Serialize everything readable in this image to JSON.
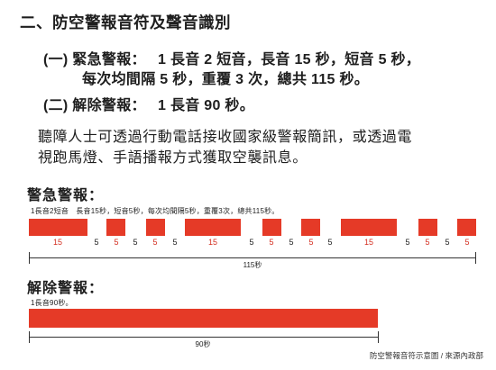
{
  "section_title": "二、防空警報音符及聲音識別",
  "items": [
    {
      "label": "(一) 緊急警報：",
      "text_line1": "1 長音 2 短音，長音 15 秒，短音 5 秒，",
      "text_line2": "每次均間隔 5 秒，重覆 3 次，總共 115 秒。"
    },
    {
      "label": "(二) 解除警報：",
      "text_line1": "1 長音 90 秒。"
    }
  ],
  "notice_line1": "聽障人士可透過行動電話接收國家級警報簡訊，或透過電",
  "notice_line2": "視跑馬燈、手語播報方式獲取空襲訊息。",
  "diagrams": [
    {
      "title": "警急警報：",
      "description": "1長音2短音　長音15秒，短音5秒，每次均間隔5秒，重覆3次，總共115秒。",
      "segment_labels": [
        {
          "text": "15",
          "color": "red"
        },
        {
          "text": "5",
          "color": "black"
        },
        {
          "text": "5",
          "color": "red"
        },
        {
          "text": "5",
          "color": "black"
        },
        {
          "text": "5",
          "color": "red"
        },
        {
          "text": "5",
          "color": "black"
        },
        {
          "text": "15",
          "color": "red"
        },
        {
          "text": "5",
          "color": "black"
        },
        {
          "text": "5",
          "color": "red"
        },
        {
          "text": "5",
          "color": "black"
        },
        {
          "text": "5",
          "color": "red"
        },
        {
          "text": "5",
          "color": "black"
        },
        {
          "text": "15",
          "color": "red"
        },
        {
          "text": "5",
          "color": "black"
        },
        {
          "text": "5",
          "color": "red"
        },
        {
          "text": "5",
          "color": "black"
        },
        {
          "text": "5",
          "color": "red"
        }
      ],
      "total_label": "115秒"
    },
    {
      "title": "解除警報：",
      "description": "1長音90秒。",
      "total_label": "90秒"
    }
  ],
  "credit": "防空警報音符示意圖 / 來源內政部",
  "colors": {
    "signal_red": "#e53a27",
    "label_red": "#d42f21",
    "text": "#1e1e1e"
  }
}
